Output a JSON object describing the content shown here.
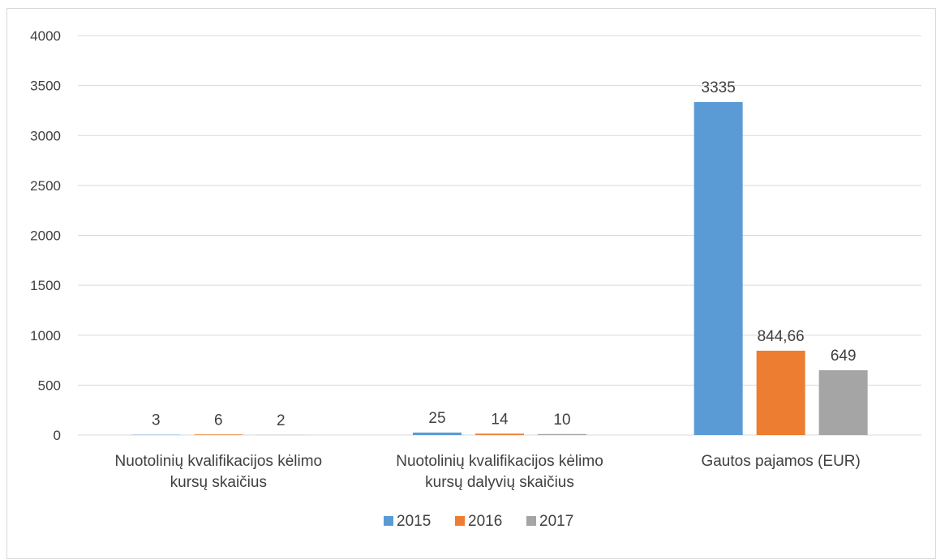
{
  "chart_data": {
    "type": "bar",
    "categories": [
      [
        "Nuotolinių kvalifikacijos kėlimo",
        "kursų skaičius"
      ],
      [
        "Nuotolinių kvalifikacijos kėlimo",
        "kursų dalyvių skaičius"
      ],
      [
        "Gautos pajamos (EUR)"
      ]
    ],
    "series": [
      {
        "name": "2015",
        "values": [
          3,
          25,
          3335
        ],
        "labels": [
          "3",
          "25",
          "3335"
        ],
        "color": "#5b9bd5"
      },
      {
        "name": "2016",
        "values": [
          6,
          14,
          844.66
        ],
        "labels": [
          "6",
          "14",
          "844,66"
        ],
        "color": "#ed7d31"
      },
      {
        "name": "2017",
        "values": [
          2,
          10,
          649
        ],
        "labels": [
          "2",
          "10",
          "649"
        ],
        "color": "#a5a5a5"
      }
    ],
    "ylim": [
      0,
      4000
    ],
    "yticks": [
      0,
      500,
      1000,
      1500,
      2000,
      2500,
      3000,
      3500,
      4000
    ],
    "grid": true,
    "legend_position": "bottom",
    "title": "",
    "xlabel": "",
    "ylabel": ""
  }
}
